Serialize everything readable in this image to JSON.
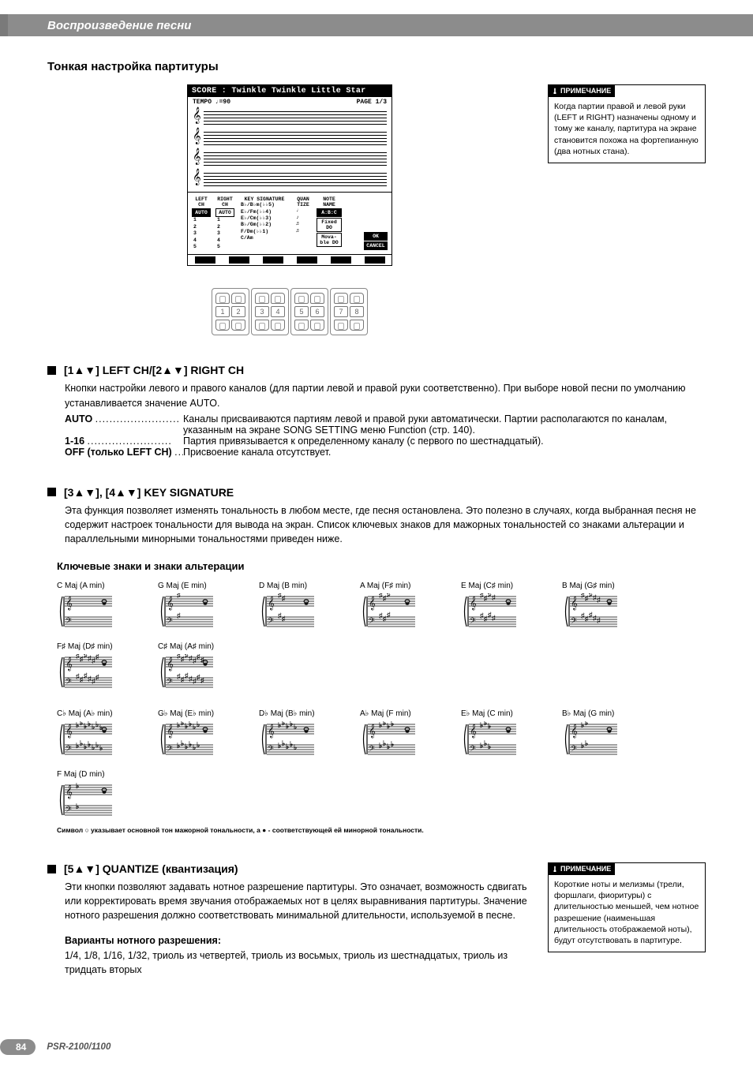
{
  "colors": {
    "header_bg": "#8c8c8c",
    "text": "#000000",
    "note_border": "#000000"
  },
  "header": {
    "title": "Воспроизведение песни"
  },
  "h2": "Тонкая настройка партитуры",
  "note1": {
    "tab": "ПРИМЕЧАНИЕ",
    "body": "Когда партии правой и левой руки (LEFT и RIGHT) назначены одному и тому же каналу, партитура на экране становится похожа на фортепианную (два нотных стана)."
  },
  "score": {
    "title": "SCORE : Twinkle Twinkle Little Star",
    "tempo": "TEMPO ♩=90",
    "page": "PAGE 1/3",
    "params": {
      "left_head": "LEFT\nCH",
      "right_head": "RIGHT\nCH",
      "keysig_head": "KEY\nSIGNATURE",
      "quant_head": "QUAN\nTIZE",
      "note_head": "NOTE\nNAME",
      "auto": "AUTO",
      "nums": [
        "1",
        "2",
        "3",
        "4",
        "5"
      ],
      "keysig_rows": [
        "B♭/B♭m(♭♭5)",
        "E♭/Fm(♭♭4)",
        "E♭/Cm(♭♭3)",
        "B♭/Gm(♭♭2)",
        "F/Dm(♭♭1)",
        "C/Am"
      ],
      "note_rows": [
        "A:B:C",
        "Fixed\nDO",
        "Mova-\nble DO"
      ],
      "ok": "OK",
      "cancel": "CANCEL"
    }
  },
  "buttons": {
    "count": 8
  },
  "sec1": {
    "heading": "[1▲▼] LEFT CH/[2▲▼] RIGHT CH",
    "body": "Кнопки настройки левого и правого каналов (для партии левой и правой руки соответственно). При выборе новой песни по умолчанию устанавливается значение AUTO.",
    "defs": [
      {
        "term": "AUTO",
        "val": "Каналы присваиваются партиям левой и правой руки автоматически. Партии располагаются по каналам, указанным на экране SONG SETTING меню Function (стр. 140)."
      },
      {
        "term": "1-16",
        "val": "Партия привязывается к определенному каналу (с первого по шестнадцатый)."
      },
      {
        "term": "OFF (только LEFT CH)",
        "val": "Присвоение канала отсутствует."
      }
    ]
  },
  "sec2": {
    "heading": "[3▲▼], [4▲▼] KEY SIGNATURE",
    "body": "Эта функция позволяет изменять тональность в любом месте, где песня остановлена. Это полезно в случаях, когда выбранная песня не содержит настроек тональности для вывода на экран. Список ключевых знаков для мажорных тональностей со знаками альтерации и параллельными минорными тональностями приведен ниже.",
    "sub": "Ключевые знаки и знаки альтерации",
    "row1": [
      {
        "label": "C Maj (A min)",
        "sharps": 0,
        "flats": 0
      },
      {
        "label": "G Maj (E min)",
        "sharps": 1,
        "flats": 0
      },
      {
        "label": "D Maj (B min)",
        "sharps": 2,
        "flats": 0
      },
      {
        "label": "A Maj (F♯ min)",
        "sharps": 3,
        "flats": 0
      },
      {
        "label": "E Maj (C♯ min)",
        "sharps": 4,
        "flats": 0
      },
      {
        "label": "B Maj (G♯ min)",
        "sharps": 5,
        "flats": 0
      },
      {
        "label": "F♯ Maj (D♯ min)",
        "sharps": 6,
        "flats": 0
      },
      {
        "label": "C♯ Maj (A♯ min)",
        "sharps": 7,
        "flats": 0
      }
    ],
    "row2": [
      {
        "label": "C♭ Maj (A♭ min)",
        "sharps": 0,
        "flats": 7
      },
      {
        "label": "G♭ Maj (E♭ min)",
        "sharps": 0,
        "flats": 6
      },
      {
        "label": "D♭ Maj (B♭ min)",
        "sharps": 0,
        "flats": 5
      },
      {
        "label": "A♭ Maj (F min)",
        "sharps": 0,
        "flats": 4
      },
      {
        "label": "E♭ Maj (C min)",
        "sharps": 0,
        "flats": 3
      },
      {
        "label": "B♭ Maj (G min)",
        "sharps": 0,
        "flats": 2
      },
      {
        "label": "F Maj (D min)",
        "sharps": 0,
        "flats": 1
      }
    ],
    "caption": "Символ ○ указывает основной тон мажорной тональности, а ● - соответствующей ей минорной тональности."
  },
  "sec3": {
    "heading": "[5▲▼] QUANTIZE (квантизация)",
    "body": "Эти кнопки позволяют задавать нотное разрешение партитуры. Это означает, возможность сдвигать или корректировать время звучания отображаемых нот в целях выравнивания партитуры. Значение нотного разрешения должно соответствовать минимальной длительности, используемой в песне.",
    "sub": "Варианты нотного разрешения:",
    "vals": "1/4, 1/8, 1/16, 1/32, триоль из четвертей, триоль из восьмых, триоль из шестнадцатых, триоль из тридцать вторых"
  },
  "note2": {
    "tab": "ПРИМЕЧАНИЕ",
    "body": "Короткие ноты и мелизмы (трели, форшлаги, фиоритуры) с длительностью меньшей, чем нотное разрешение (наименьшая длительность отображаемой ноты), будут отсутствовать в партитуре."
  },
  "footer": {
    "page": "84",
    "model": "PSR-2100/1100"
  }
}
